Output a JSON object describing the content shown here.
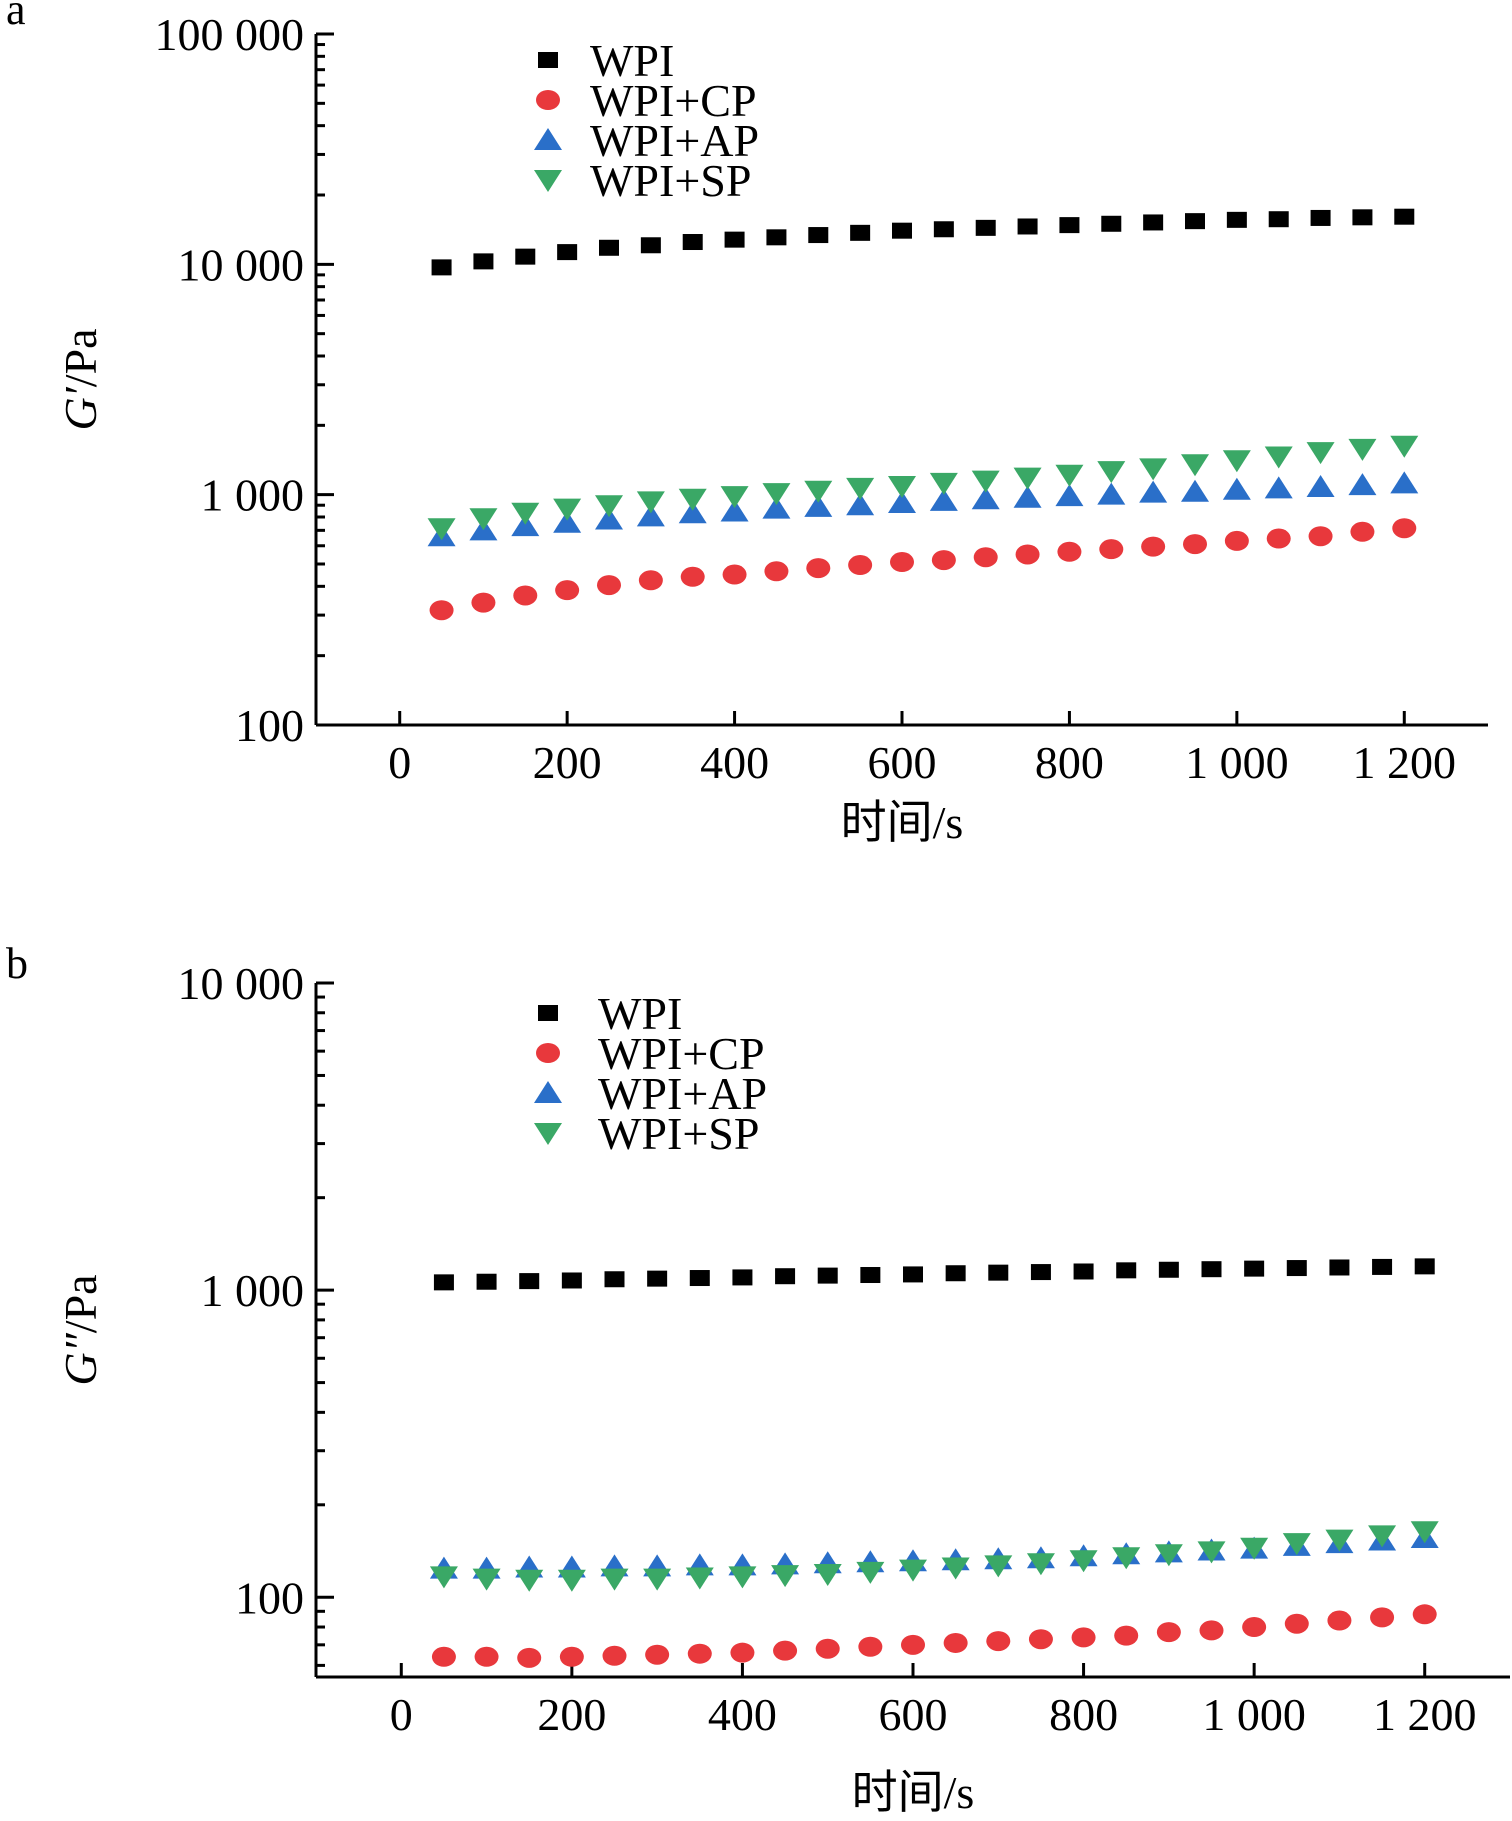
{
  "chart_data": [
    {
      "type": "scatter",
      "panel_label": "a",
      "yscale": "log",
      "ylabel_symbol": "G′",
      "ylabel_unit": "/Pa",
      "xlabel": "时间/s",
      "xlim": [
        -100,
        1300
      ],
      "ylim": [
        100,
        100000
      ],
      "xticks": [
        0,
        200,
        400,
        600,
        800,
        1000,
        1200
      ],
      "xtick_labels": [
        "0",
        "200",
        "400",
        "600",
        "800",
        "1 000",
        "1 200"
      ],
      "yticks": [
        100,
        1000,
        10000,
        100000
      ],
      "ytick_labels": [
        "100",
        "1 000",
        "10 000",
        "100 000"
      ],
      "legend_position": "top-left",
      "x": [
        50,
        100,
        150,
        200,
        250,
        300,
        350,
        400,
        450,
        500,
        550,
        600,
        650,
        700,
        750,
        800,
        850,
        900,
        950,
        1000,
        1050,
        1100,
        1150,
        1200
      ],
      "series": [
        {
          "name": "WPI",
          "marker": "square",
          "color": "#000000",
          "values": [
            9700,
            10300,
            10800,
            11300,
            11800,
            12100,
            12500,
            12800,
            13100,
            13400,
            13700,
            14000,
            14200,
            14400,
            14600,
            14800,
            15000,
            15200,
            15400,
            15600,
            15700,
            15900,
            16000,
            16100
          ]
        },
        {
          "name": "WPI+CP",
          "marker": "circle",
          "color": "#e8383c",
          "values": [
            315,
            340,
            365,
            385,
            405,
            425,
            440,
            450,
            465,
            480,
            495,
            510,
            520,
            535,
            550,
            565,
            580,
            595,
            610,
            630,
            645,
            660,
            690,
            715
          ]
        },
        {
          "name": "WPI+AP",
          "marker": "triangle-up",
          "color": "#2a6fc9",
          "values": [
            660,
            700,
            730,
            755,
            780,
            805,
            830,
            845,
            870,
            885,
            900,
            920,
            940,
            955,
            970,
            985,
            1000,
            1020,
            1030,
            1050,
            1065,
            1080,
            1100,
            1120
          ]
        },
        {
          "name": "WPI+SP",
          "marker": "triangle-down",
          "color": "#3aa866",
          "values": [
            715,
            790,
            835,
            870,
            900,
            935,
            960,
            985,
            1015,
            1040,
            1070,
            1090,
            1125,
            1150,
            1185,
            1220,
            1265,
            1300,
            1355,
            1410,
            1465,
            1530,
            1580,
            1630
          ]
        }
      ]
    },
    {
      "type": "scatter",
      "panel_label": "b",
      "yscale": "log",
      "ylabel_symbol": "G″",
      "ylabel_unit": "/Pa",
      "xlabel": "时间/s",
      "xlim": [
        -100,
        1300
      ],
      "ylim": [
        55,
        10000
      ],
      "xticks": [
        0,
        200,
        400,
        600,
        800,
        1000,
        1200
      ],
      "xtick_labels": [
        "0",
        "200",
        "400",
        "600",
        "800",
        "1 000",
        "1 200"
      ],
      "yticks": [
        100,
        1000,
        10000
      ],
      "ytick_labels": [
        "100",
        "1 000",
        "10 000"
      ],
      "legend_position": "top-left",
      "x": [
        50,
        100,
        150,
        200,
        250,
        300,
        350,
        400,
        450,
        500,
        550,
        600,
        650,
        700,
        750,
        800,
        850,
        900,
        950,
        1000,
        1050,
        1100,
        1150,
        1200
      ],
      "series": [
        {
          "name": "WPI",
          "marker": "square",
          "color": "#000000",
          "values": [
            1060,
            1065,
            1070,
            1075,
            1085,
            1090,
            1095,
            1100,
            1110,
            1115,
            1120,
            1125,
            1135,
            1140,
            1145,
            1150,
            1160,
            1165,
            1170,
            1175,
            1180,
            1185,
            1190,
            1195
          ]
        },
        {
          "name": "WPI+CP",
          "marker": "circle",
          "color": "#e8383c",
          "values": [
            64,
            64,
            63.5,
            64,
            64.5,
            65,
            65.5,
            66,
            67,
            68,
            69,
            70,
            71,
            72,
            73,
            74,
            75,
            77,
            78,
            80,
            82,
            84,
            86,
            88
          ]
        },
        {
          "name": "WPI+AP",
          "marker": "triangle-up",
          "color": "#2a6fc9",
          "values": [
            124,
            124,
            125,
            125,
            126,
            126,
            127,
            127,
            128,
            129,
            130,
            131,
            132,
            133,
            134,
            136,
            138,
            140,
            142,
            144,
            147,
            150,
            153,
            156
          ]
        },
        {
          "name": "WPI+SP",
          "marker": "triangle-down",
          "color": "#3aa866",
          "values": [
            117,
            115,
            114,
            114,
            115,
            115,
            116,
            117,
            118,
            119,
            121,
            123,
            125,
            127,
            129,
            132,
            135,
            138,
            141,
            145,
            150,
            154,
            159,
            164
          ]
        }
      ]
    }
  ]
}
